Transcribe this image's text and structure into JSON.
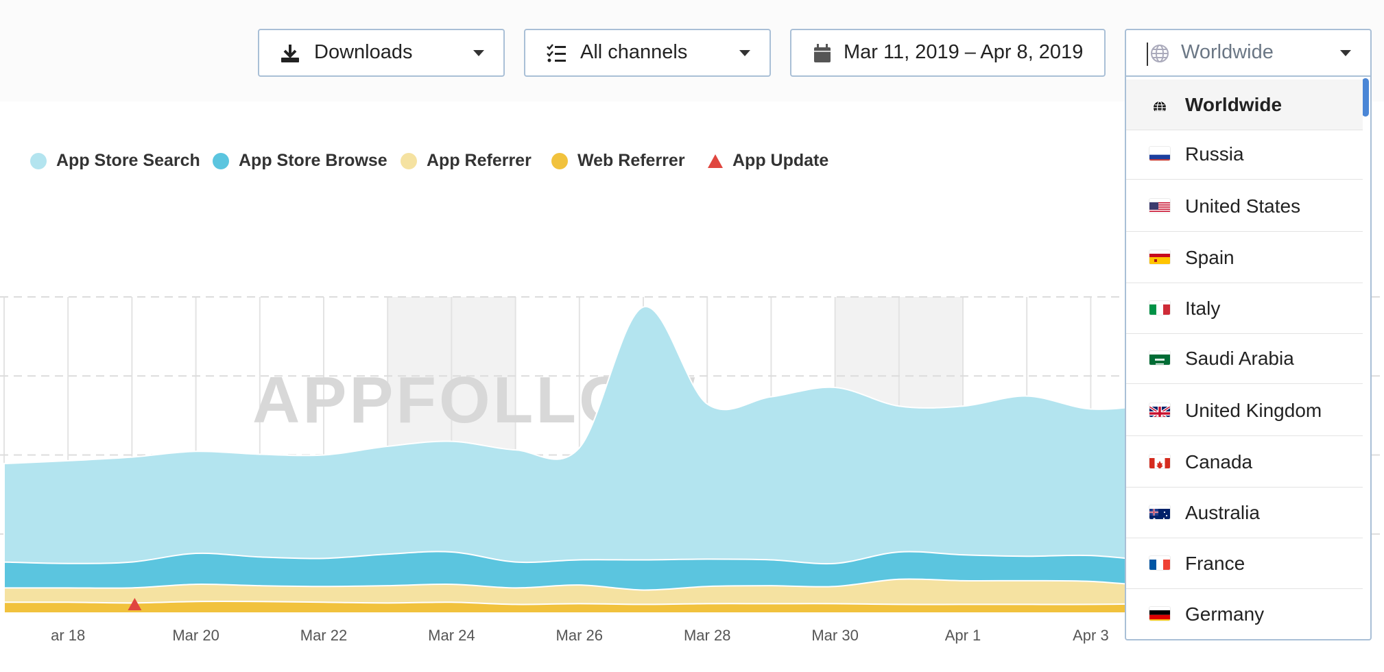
{
  "toolbar": {
    "metric": {
      "label": "Downloads",
      "icon": "download-icon"
    },
    "channels": {
      "label": "All channels",
      "icon": "checklist-icon"
    },
    "date_range": {
      "label": "Mar 11, 2019 – Apr 8, 2019",
      "icon": "calendar-icon"
    },
    "country": {
      "label": "Worldwide",
      "icon": "globe-icon"
    }
  },
  "legend": [
    {
      "label": "App Store Search",
      "color": "#b3e4ef",
      "shape": "circle"
    },
    {
      "label": "App Store Browse",
      "color": "#5bc5df",
      "shape": "circle"
    },
    {
      "label": "App Referrer",
      "color": "#f5e2a1",
      "shape": "circle"
    },
    {
      "label": "Web Referrer",
      "color": "#f1c23d",
      "shape": "circle"
    },
    {
      "label": "App Update",
      "color": "#e0463f",
      "shape": "triangle"
    }
  ],
  "watermark": "APPFOLLOW",
  "chart_data": {
    "type": "area",
    "stacked": true,
    "x": [
      "Mar 17",
      "Mar 18",
      "Mar 19",
      "Mar 20",
      "Mar 21",
      "Mar 22",
      "Mar 23",
      "Mar 24",
      "Mar 25",
      "Mar 26",
      "Mar 27",
      "Mar 28",
      "Mar 29",
      "Mar 30",
      "Mar 31",
      "Apr 1",
      "Apr 2",
      "Apr 3",
      "Apr 4"
    ],
    "x_tick_labels": [
      "ar 18",
      "Mar 20",
      "Mar 22",
      "Mar 24",
      "Mar 26",
      "Mar 28",
      "Mar 30",
      "Apr 1",
      "Apr 3"
    ],
    "series": [
      {
        "name": "Web Referrer",
        "color": "#f1c23d",
        "values": [
          1.5,
          1.5,
          1.4,
          1.6,
          1.6,
          1.5,
          1.4,
          1.5,
          1.2,
          1.3,
          1.2,
          1.3,
          1.3,
          1.3,
          1.2,
          1.2,
          1.2,
          1.2,
          1.3
        ]
      },
      {
        "name": "App Referrer",
        "color": "#f5e2a1",
        "values": [
          2.0,
          2.0,
          2.1,
          2.4,
          2.2,
          2.2,
          2.4,
          2.5,
          2.3,
          2.6,
          2.0,
          2.4,
          2.5,
          2.4,
          3.5,
          3.3,
          3.3,
          3.2,
          2.4
        ]
      },
      {
        "name": "App Store Browse",
        "color": "#5bc5df",
        "values": [
          3.6,
          3.4,
          3.6,
          4.3,
          4.0,
          3.9,
          4.4,
          4.5,
          3.6,
          3.5,
          4.2,
          3.8,
          3.6,
          3.2,
          3.8,
          3.6,
          3.4,
          3.6,
          3.5
        ]
      },
      {
        "name": "App Store Search",
        "color": "#b3e4ef",
        "values": [
          13.7,
          14.3,
          14.6,
          14.2,
          14.3,
          14.4,
          15.0,
          15.4,
          15.6,
          15.6,
          35.2,
          21.6,
          22.7,
          24.5,
          20.3,
          20.7,
          22.3,
          20.4,
          21.8
        ]
      },
      {
        "name": "App Update",
        "color": "#e0463f",
        "events": [
          "Mar 19"
        ]
      }
    ],
    "ylim": [
      0,
      44
    ],
    "grid": true,
    "weekend_shading": [
      [
        "Mar 23",
        "Mar 25"
      ],
      [
        "Mar 30",
        "Apr 1"
      ]
    ],
    "legend_position": "top-left"
  },
  "country_options": [
    {
      "label": "Worldwide",
      "flag": "globe",
      "selected": true
    },
    {
      "label": "Russia",
      "flag": "ru"
    },
    {
      "label": "United States",
      "flag": "us"
    },
    {
      "label": "Spain",
      "flag": "es"
    },
    {
      "label": "Italy",
      "flag": "it"
    },
    {
      "label": "Saudi Arabia",
      "flag": "sa"
    },
    {
      "label": "United Kingdom",
      "flag": "gb"
    },
    {
      "label": "Canada",
      "flag": "ca"
    },
    {
      "label": "Australia",
      "flag": "au"
    },
    {
      "label": "France",
      "flag": "fr"
    },
    {
      "label": "Germany",
      "flag": "de"
    }
  ]
}
